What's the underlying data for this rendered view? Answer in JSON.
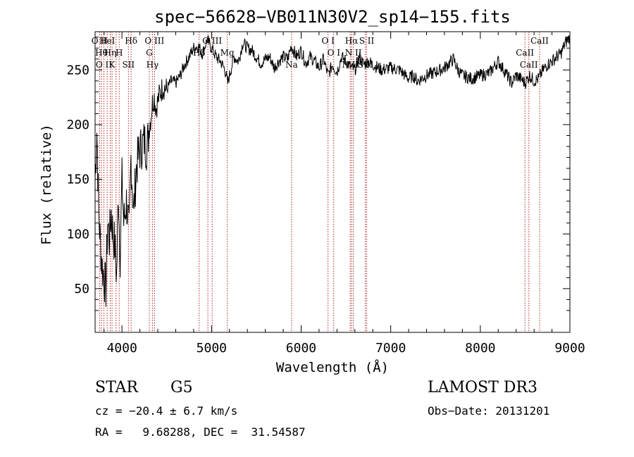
{
  "chart_data": {
    "type": "line",
    "title": "spec−56628−VB011N30V2_sp14−155.fits",
    "xlabel": "Wavelength (Å)",
    "ylabel": "Flux (relative)",
    "xlim": [
      3700,
      9000
    ],
    "ylim": [
      10,
      285
    ],
    "xticks": [
      4000,
      5000,
      6000,
      7000,
      8000,
      9000
    ],
    "yticks": [
      50,
      100,
      150,
      200,
      250
    ],
    "grid": false,
    "series": [
      {
        "x": [
          3700,
          3720,
          3740,
          3760,
          3780,
          3800,
          3820,
          3840,
          3860,
          3880,
          3900,
          3920,
          3940,
          3960,
          3980,
          4000,
          4020,
          4050,
          4080,
          4100,
          4130,
          4160,
          4190,
          4220,
          4250,
          4280,
          4300,
          4320,
          4340,
          4360,
          4380,
          4420,
          4460,
          4500,
          4550,
          4600,
          4650,
          4700,
          4750,
          4800,
          4850,
          4900,
          4950,
          5000,
          5050,
          5100,
          5150,
          5180,
          5200,
          5250,
          5300,
          5350,
          5400,
          5450,
          5500,
          5550,
          5600,
          5650,
          5700,
          5750,
          5800,
          5850,
          5890,
          5950,
          6000,
          6050,
          6100,
          6150,
          6200,
          6250,
          6300,
          6350,
          6400,
          6450,
          6500,
          6562,
          6600,
          6650,
          6700,
          6750,
          6800,
          6900,
          7000,
          7100,
          7200,
          7250,
          7300,
          7400,
          7500,
          7600,
          7700,
          7750,
          7800,
          7900,
          8000,
          8100,
          8200,
          8300,
          8350,
          8400,
          8450,
          8500,
          8550,
          8600,
          8650,
          8700,
          8750,
          8800,
          8850,
          8900,
          8950,
          9000
        ],
        "y": [
          150,
          195,
          120,
          90,
          70,
          60,
          50,
          110,
          95,
          120,
          100,
          90,
          60,
          140,
          80,
          150,
          110,
          130,
          100,
          170,
          120,
          160,
          175,
          180,
          185,
          178,
          195,
          205,
          220,
          225,
          215,
          228,
          235,
          232,
          240,
          238,
          245,
          255,
          262,
          270,
          272,
          265,
          278,
          270,
          262,
          258,
          250,
          238,
          245,
          262,
          258,
          275,
          270,
          268,
          262,
          256,
          260,
          262,
          252,
          258,
          262,
          260,
          272,
          262,
          268,
          256,
          262,
          258,
          252,
          260,
          245,
          255,
          248,
          262,
          258,
          252,
          250,
          262,
          255,
          258,
          255,
          250,
          252,
          250,
          242,
          245,
          240,
          245,
          248,
          252,
          260,
          250,
          245,
          242,
          245,
          247,
          258,
          245,
          238,
          245,
          242,
          238,
          245,
          240,
          242,
          250,
          255,
          258,
          262,
          265,
          275,
          280
        ]
      }
    ],
    "lines": [
      {
        "x": 3750,
        "labels": [
          "O II"
        ]
      },
      {
        "x": 3771,
        "labels": [
          "Hθ"
        ]
      },
      {
        "x": 3798,
        "labels": [
          "O II"
        ]
      },
      {
        "x": 3835,
        "labels": [
          "HeI"
        ]
      },
      {
        "x": 3869,
        "labels": [
          "Hη"
        ]
      },
      {
        "x": 3889,
        "labels": [
          "K"
        ]
      },
      {
        "x": 3934,
        "labels": []
      },
      {
        "x": 3969,
        "labels": [
          "H"
        ]
      },
      {
        "x": 4072,
        "labels": [
          "SII"
        ]
      },
      {
        "x": 4102,
        "labels": [
          "Hδ"
        ]
      },
      {
        "x": 4305,
        "labels": [
          "G"
        ]
      },
      {
        "x": 4340,
        "labels": [
          "Hγ"
        ]
      },
      {
        "x": 4363,
        "labels": [
          "O III"
        ]
      },
      {
        "x": 4861,
        "labels": [
          "Hβ"
        ]
      },
      {
        "x": 4959,
        "labels": []
      },
      {
        "x": 5007,
        "labels": [
          "O III"
        ]
      },
      {
        "x": 5175,
        "labels": [
          "Mg"
        ]
      },
      {
        "x": 5893,
        "labels": [
          "Na"
        ]
      },
      {
        "x": 6300,
        "labels": [
          "O I"
        ]
      },
      {
        "x": 6364,
        "labels": [
          "O I"
        ]
      },
      {
        "x": 6548,
        "labels": [
          "N II"
        ]
      },
      {
        "x": 6563,
        "labels": [
          "Hα"
        ]
      },
      {
        "x": 6583,
        "labels": [
          "N II"
        ]
      },
      {
        "x": 6716,
        "labels": [
          "S II"
        ]
      },
      {
        "x": 6731,
        "labels": [
          "S II"
        ]
      },
      {
        "x": 8498,
        "labels": [
          "CaII"
        ]
      },
      {
        "x": 8542,
        "labels": [
          "CaII"
        ]
      },
      {
        "x": 8662,
        "labels": [
          "CaII"
        ]
      }
    ]
  },
  "info": {
    "class_label": "STAR",
    "subclass_label": "G5",
    "survey": "LAMOST DR3",
    "cz": "cz = −20.4 ± 6.7 km/s",
    "obs_date": "Obs−Date: 20131201",
    "coords": "RA =   9.68288, DEC =  31.54587"
  },
  "colors": {
    "axis": "#000000",
    "spectrum": "#000000",
    "line_markers": "#b22222"
  }
}
